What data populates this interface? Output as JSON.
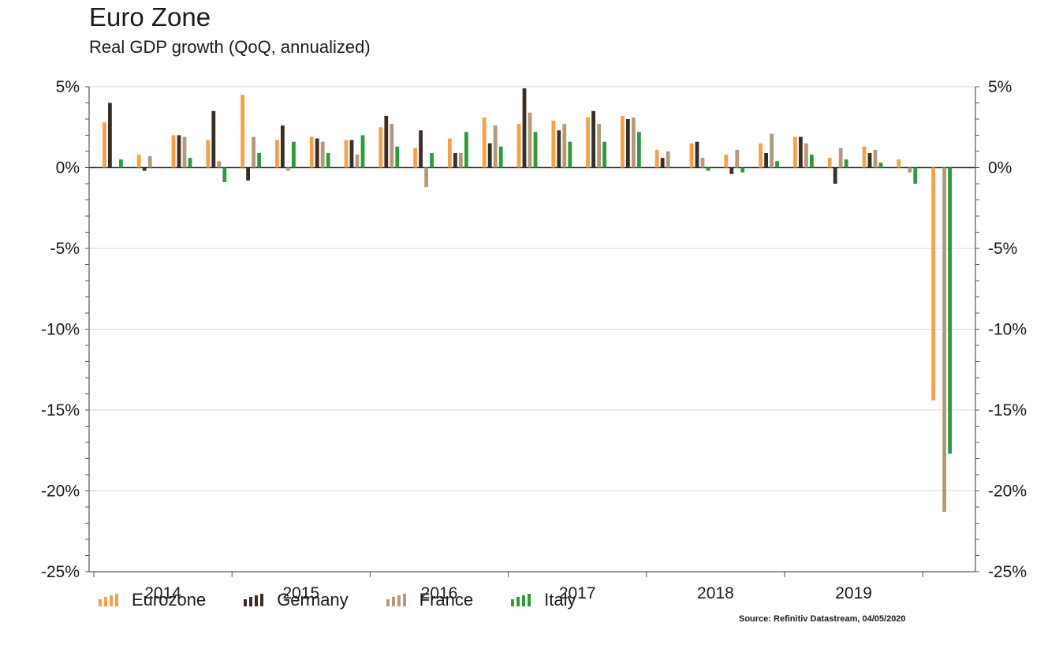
{
  "header": {
    "title": "Euro Zone",
    "subtitle": "Real GDP growth (QoQ, annualized)"
  },
  "footer": {
    "source": "Source: Refinitiv Datastream, 04/05/2020"
  },
  "colors": {
    "eurozone": "#f4a14a",
    "germany": "#3a2e24",
    "france": "#b39a7b",
    "italy": "#2e9a3c",
    "grid": "#d9d9d9",
    "axis": "#555555"
  },
  "chart_data": {
    "type": "bar",
    "title": "Euro Zone",
    "subtitle": "Real GDP growth (QoQ, annualized)",
    "xlabel": "",
    "ylabel": "",
    "ylim": [
      -25,
      5
    ],
    "y_ticks": [
      5,
      0,
      -5,
      -10,
      -15,
      -20,
      -25
    ],
    "y_tick_labels": [
      "5%",
      "0%",
      "-5%",
      "-10%",
      "-15%",
      "-20%",
      "-25%"
    ],
    "grid": true,
    "legend_position": "bottom",
    "year_labels": [
      "2014",
      "2015",
      "2016",
      "2017",
      "2018",
      "2019"
    ],
    "categories": [
      "2014Q1",
      "2014Q2",
      "2014Q3",
      "2014Q4",
      "2015Q1",
      "2015Q2",
      "2015Q3",
      "2015Q4",
      "2016Q1",
      "2016Q2",
      "2016Q3",
      "2016Q4",
      "2017Q1",
      "2017Q2",
      "2017Q3",
      "2017Q4",
      "2018Q1",
      "2018Q2",
      "2018Q3",
      "2018Q4",
      "2019Q1",
      "2019Q2",
      "2019Q3",
      "2019Q4",
      "2020Q1"
    ],
    "series": [
      {
        "name": "Eurozone",
        "color_key": "eurozone",
        "values": [
          2.8,
          0.8,
          2.0,
          1.7,
          4.5,
          1.7,
          1.9,
          1.7,
          2.5,
          1.2,
          1.8,
          3.1,
          2.7,
          2.9,
          3.1,
          3.2,
          1.1,
          1.5,
          0.8,
          1.5,
          1.9,
          0.6,
          1.3,
          0.5,
          -14.4
        ]
      },
      {
        "name": "Germany",
        "color_key": "germany",
        "values": [
          4.0,
          -0.2,
          2.0,
          3.5,
          -0.8,
          2.6,
          1.8,
          1.7,
          3.2,
          2.3,
          0.9,
          1.5,
          4.9,
          2.3,
          3.5,
          3.0,
          0.6,
          1.6,
          -0.4,
          0.9,
          1.9,
          -1.0,
          0.9,
          0.0,
          0.0
        ]
      },
      {
        "name": "France",
        "color_key": "france",
        "values": [
          0.0,
          0.7,
          1.9,
          0.4,
          1.9,
          -0.2,
          1.6,
          0.8,
          2.7,
          -1.2,
          0.9,
          2.6,
          3.4,
          2.7,
          2.7,
          3.1,
          1.0,
          0.6,
          1.1,
          2.1,
          1.5,
          1.2,
          1.1,
          -0.3,
          -21.3
        ]
      },
      {
        "name": "Italy",
        "color_key": "italy",
        "values": [
          0.5,
          0.0,
          0.6,
          -0.9,
          0.9,
          1.6,
          0.9,
          2.0,
          1.3,
          0.9,
          2.2,
          1.3,
          2.2,
          1.6,
          1.6,
          2.2,
          0.0,
          -0.2,
          -0.3,
          0.4,
          0.8,
          0.5,
          0.3,
          -1.0,
          -17.7
        ]
      }
    ]
  }
}
